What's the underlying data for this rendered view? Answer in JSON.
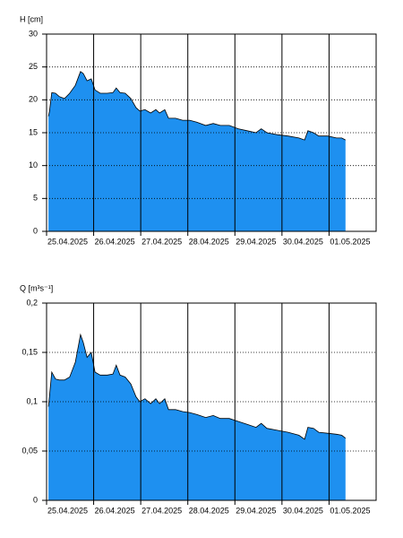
{
  "chart_data": [
    {
      "type": "area",
      "y_label": "H [cm]",
      "color": "#1e90f0",
      "grid": true,
      "xlim": [
        0,
        7
      ],
      "xticks": [
        {
          "value": 0,
          "label": "25.04.2025"
        },
        {
          "value": 1,
          "label": "26.04.2025"
        },
        {
          "value": 2,
          "label": "27.04.2025"
        },
        {
          "value": 3,
          "label": "28.04.2025"
        },
        {
          "value": 4,
          "label": "29.04.2025"
        },
        {
          "value": 5,
          "label": "30.04.2025"
        },
        {
          "value": 6,
          "label": "01.05.2025"
        }
      ],
      "ylim": [
        0,
        30
      ],
      "yticks": [
        0,
        5,
        10,
        15,
        20,
        25,
        30
      ],
      "x": [
        0.04,
        0.06,
        0.11,
        0.19,
        0.27,
        0.38,
        0.49,
        0.61,
        0.72,
        0.78,
        0.86,
        0.95,
        1.03,
        1.14,
        1.29,
        1.41,
        1.48,
        1.56,
        1.67,
        1.79,
        1.9,
        1.98,
        2.09,
        2.21,
        2.32,
        2.4,
        2.51,
        2.59,
        2.74,
        2.89,
        3.04,
        3.19,
        3.38,
        3.54,
        3.69,
        3.88,
        4.07,
        4.26,
        4.45,
        4.56,
        4.68,
        4.9,
        5.13,
        5.36,
        5.48,
        5.55,
        5.67,
        5.78,
        5.97,
        6.16,
        6.27,
        6.35
      ],
      "values": [
        17.5,
        18.2,
        21.1,
        21,
        20.5,
        20.2,
        21,
        22.2,
        24.3,
        24,
        22.9,
        23.2,
        21.5,
        21,
        21,
        21.1,
        21.8,
        21.1,
        21,
        20.2,
        18.8,
        18.3,
        18.5,
        18,
        18.5,
        18,
        18.5,
        17.2,
        17.2,
        16.9,
        16.9,
        16.6,
        16.1,
        16.4,
        16.1,
        16.1,
        15.6,
        15.3,
        15,
        15.6,
        15,
        14.7,
        14.5,
        14.2,
        13.9,
        15.3,
        15,
        14.5,
        14.5,
        14.2,
        14.2,
        13.9
      ]
    },
    {
      "type": "area",
      "y_label": "Q [m³s⁻¹]",
      "color": "#1e90f0",
      "grid": true,
      "xlim": [
        0,
        7
      ],
      "xticks": [
        {
          "value": 0,
          "label": "25.04.2025"
        },
        {
          "value": 1,
          "label": "26.04.2025"
        },
        {
          "value": 2,
          "label": "27.04.2025"
        },
        {
          "value": 3,
          "label": "28.04.2025"
        },
        {
          "value": 4,
          "label": "29.04.2025"
        },
        {
          "value": 5,
          "label": "30.04.2025"
        },
        {
          "value": 6,
          "label": "01.05.2025"
        }
      ],
      "ylim": [
        0,
        0.2
      ],
      "yticks": [
        0,
        {
          "value": 0.05,
          "label": "0,05"
        },
        {
          "value": 0.1,
          "label": "0,1"
        },
        {
          "value": 0.15,
          "label": "0,15"
        },
        {
          "value": 0.2,
          "label": "0,2"
        }
      ],
      "x": [
        0.04,
        0.06,
        0.11,
        0.19,
        0.27,
        0.38,
        0.49,
        0.61,
        0.72,
        0.78,
        0.86,
        0.95,
        1.03,
        1.14,
        1.29,
        1.41,
        1.48,
        1.56,
        1.67,
        1.79,
        1.9,
        1.98,
        2.09,
        2.21,
        2.32,
        2.4,
        2.51,
        2.59,
        2.74,
        2.89,
        3.04,
        3.19,
        3.38,
        3.54,
        3.69,
        3.88,
        4.07,
        4.26,
        4.45,
        4.56,
        4.68,
        4.9,
        5.13,
        5.36,
        5.48,
        5.55,
        5.67,
        5.78,
        5.97,
        6.16,
        6.27,
        6.35
      ],
      "values": [
        0.095,
        0.105,
        0.13,
        0.123,
        0.122,
        0.122,
        0.125,
        0.14,
        0.168,
        0.16,
        0.145,
        0.15,
        0.13,
        0.127,
        0.127,
        0.128,
        0.137,
        0.127,
        0.125,
        0.118,
        0.105,
        0.1,
        0.103,
        0.098,
        0.103,
        0.098,
        0.103,
        0.092,
        0.092,
        0.09,
        0.089,
        0.087,
        0.084,
        0.086,
        0.083,
        0.083,
        0.08,
        0.077,
        0.074,
        0.078,
        0.073,
        0.071,
        0.069,
        0.066,
        0.062,
        0.074,
        0.073,
        0.069,
        0.068,
        0.067,
        0.066,
        0.063
      ]
    }
  ]
}
